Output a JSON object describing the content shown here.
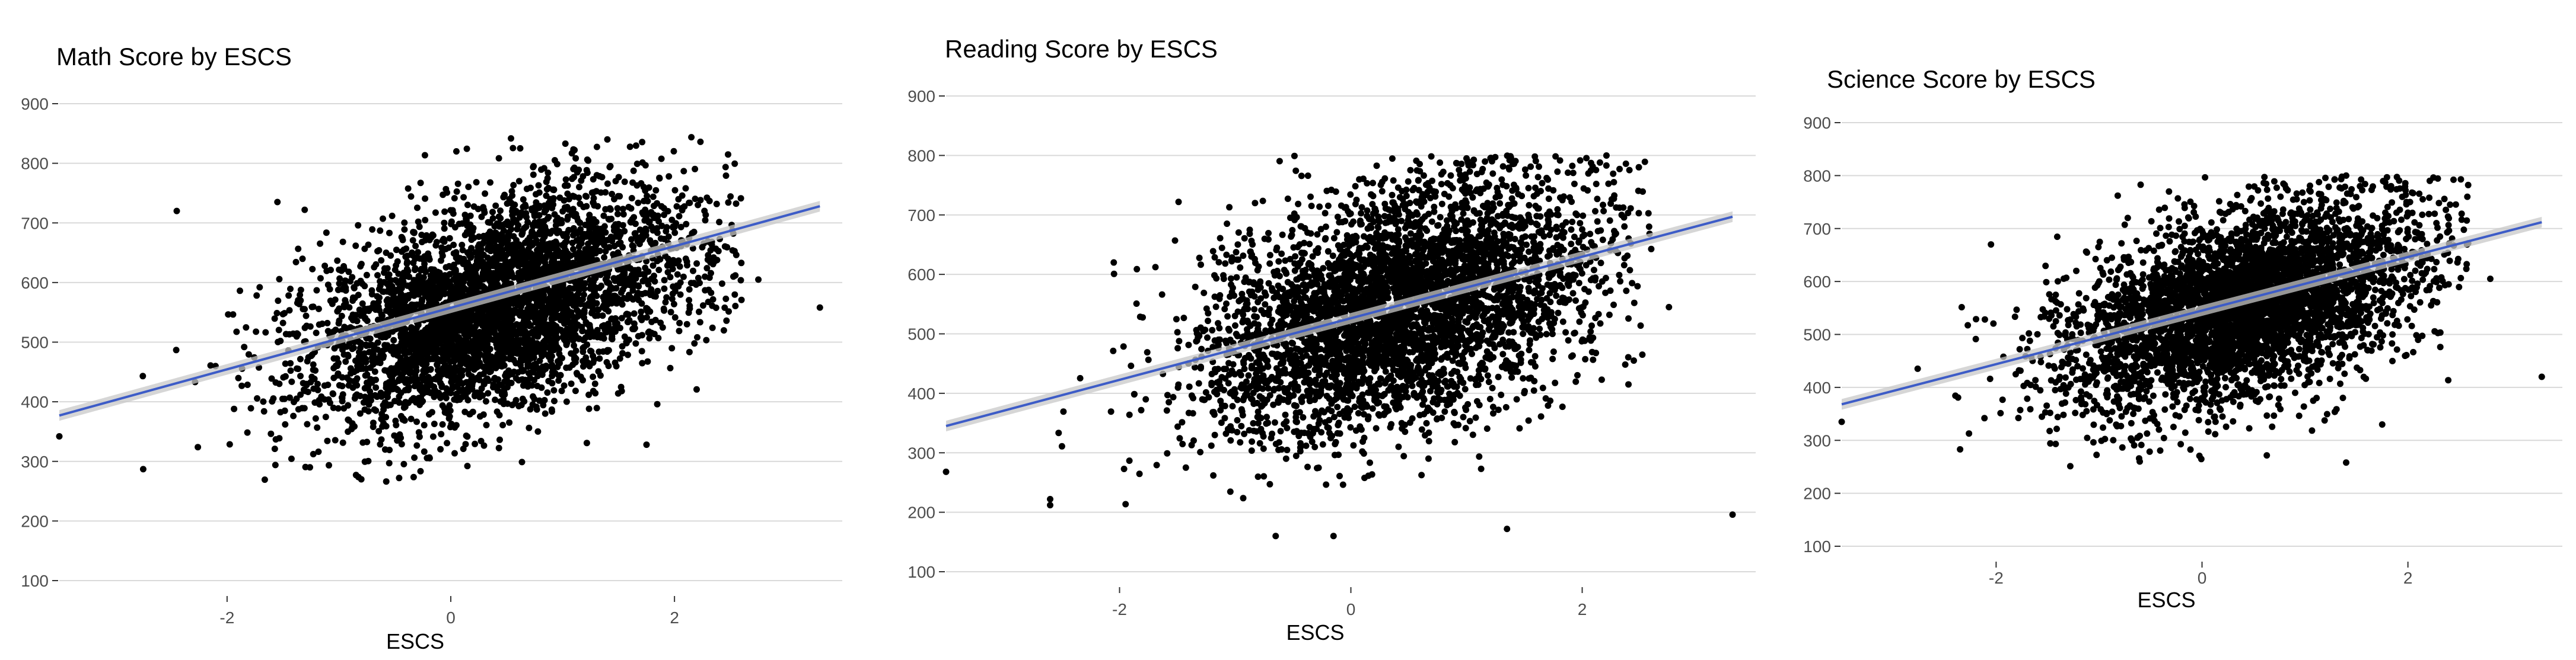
{
  "colors": {
    "points": "#000000",
    "fit_line": "#3d5cc7",
    "confidence_band": "#c8c8c8",
    "grid": "#d9d9d9",
    "tick_text": "#4d4d4d"
  },
  "chart_data": [
    {
      "type": "scatter",
      "title": "Math Score by ESCS",
      "xlabel": "ESCS",
      "ylabel": "",
      "xlim": [
        -3.5,
        3.5
      ],
      "ylim": [
        100,
        900
      ],
      "x_ticks": [
        "-2",
        "0",
        "2"
      ],
      "y_ticks": [
        "100",
        "200",
        "300",
        "400",
        "500",
        "600",
        "700",
        "800",
        "900"
      ],
      "grid": "horizontal",
      "legend": "none",
      "trend_line": {
        "x": [
          -3.5,
          3.3
        ],
        "y": [
          377,
          728
        ]
      },
      "point_cloud": {
        "n": 4200,
        "center_x": 0.4,
        "center_y": 560,
        "x_sd": 0.85,
        "slope": 51,
        "resid_sd": 85,
        "y_min": 265,
        "y_max": 845
      },
      "highlight_points": [
        {
          "x": -3.5,
          "y": 342
        },
        {
          "x": -2.75,
          "y": 287
        },
        {
          "x": -2.45,
          "y": 720
        },
        {
          "x": -1.55,
          "y": 735
        },
        {
          "x": 0.05,
          "y": 820
        },
        {
          "x": 1.4,
          "y": 840
        },
        {
          "x": 1.75,
          "y": 328
        },
        {
          "x": 1.95,
          "y": 778
        },
        {
          "x": 2.1,
          "y": 758
        },
        {
          "x": 2.75,
          "y": 605
        },
        {
          "x": 3.3,
          "y": 558
        },
        {
          "x": -0.8,
          "y": 270
        }
      ]
    },
    {
      "type": "scatter",
      "title": "Reading Score by ESCS",
      "xlabel": "ESCS",
      "ylabel": "",
      "xlim": [
        -3.5,
        3.5
      ],
      "ylim": [
        100,
        900
      ],
      "x_ticks": [
        "-2",
        "0",
        "2"
      ],
      "y_ticks": [
        "100",
        "200",
        "300",
        "400",
        "500",
        "600",
        "700",
        "800",
        "900"
      ],
      "grid": "horizontal",
      "legend": "none",
      "trend_line": {
        "x": [
          -3.5,
          3.3
        ],
        "y": [
          345,
          697
        ]
      },
      "point_cloud": {
        "n": 4200,
        "center_x": 0.4,
        "center_y": 545,
        "x_sd": 0.85,
        "slope": 52,
        "resid_sd": 95,
        "y_min": 160,
        "y_max": 800
      },
      "highlight_points": [
        {
          "x": -3.5,
          "y": 268
        },
        {
          "x": -2.6,
          "y": 222
        },
        {
          "x": -2.6,
          "y": 212
        },
        {
          "x": -2.05,
          "y": 620
        },
        {
          "x": -0.65,
          "y": 160
        },
        {
          "x": -0.15,
          "y": 160
        },
        {
          "x": 1.0,
          "y": 795
        },
        {
          "x": 1.35,
          "y": 172
        },
        {
          "x": 2.4,
          "y": 415
        },
        {
          "x": 2.75,
          "y": 545
        },
        {
          "x": 3.3,
          "y": 196
        }
      ]
    },
    {
      "type": "scatter",
      "title": "Science Score by ESCS",
      "xlabel": "ESCS",
      "ylabel": "",
      "xlim": [
        -3.5,
        3.5
      ],
      "ylim": [
        100,
        900
      ],
      "x_ticks": [
        "-2",
        "0",
        "2"
      ],
      "y_ticks": [
        "100",
        "200",
        "300",
        "400",
        "500",
        "600",
        "700",
        "800",
        "900"
      ],
      "grid": "horizontal",
      "legend": "none",
      "trend_line": {
        "x": [
          -3.5,
          3.3
        ],
        "y": [
          368,
          712
        ]
      },
      "point_cloud": {
        "n": 4200,
        "center_x": 0.4,
        "center_y": 555,
        "x_sd": 0.85,
        "slope": 50,
        "resid_sd": 85,
        "y_min": 250,
        "y_max": 800
      },
      "highlight_points": [
        {
          "x": -3.5,
          "y": 335
        },
        {
          "x": -2.05,
          "y": 670
        },
        {
          "x": -2.35,
          "y": 283
        },
        {
          "x": 1.4,
          "y": 800
        },
        {
          "x": 1.4,
          "y": 258
        },
        {
          "x": 1.75,
          "y": 330
        },
        {
          "x": 2.0,
          "y": 730
        },
        {
          "x": 2.8,
          "y": 605
        },
        {
          "x": 3.3,
          "y": 420
        }
      ]
    }
  ]
}
